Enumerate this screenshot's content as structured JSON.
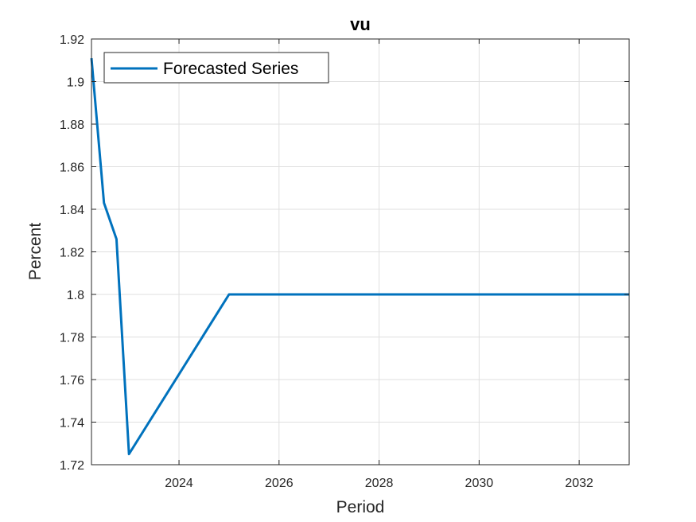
{
  "chart_data": {
    "type": "line",
    "title": "vu",
    "xlabel": "Period",
    "ylabel": "Percent",
    "xlim": [
      2022.25,
      2033.0
    ],
    "ylim": [
      1.72,
      1.92
    ],
    "x_ticks": [
      2024,
      2026,
      2028,
      2030,
      2032
    ],
    "y_ticks": [
      1.72,
      1.74,
      1.76,
      1.78,
      1.8,
      1.82,
      1.84,
      1.86,
      1.88,
      1.9,
      1.92
    ],
    "x_tick_labels": [
      "2024",
      "2026",
      "2028",
      "2030",
      "2032"
    ],
    "y_tick_labels": [
      "1.72",
      "1.74",
      "1.76",
      "1.78",
      "1.8",
      "1.82",
      "1.84",
      "1.86",
      "1.88",
      "1.9",
      "1.92"
    ],
    "grid": true,
    "legend_position": "top-left",
    "series": [
      {
        "name": "Forecasted Series",
        "color": "#0072BD",
        "x": [
          2022.25,
          2022.5,
          2022.75,
          2023.0,
          2025.0,
          2033.0
        ],
        "y": [
          1.911,
          1.843,
          1.826,
          1.725,
          1.8,
          1.8
        ]
      }
    ]
  }
}
